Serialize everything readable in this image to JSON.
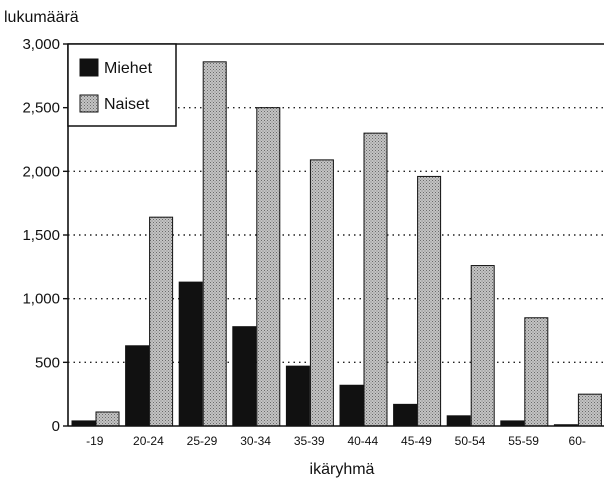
{
  "chart_data": {
    "type": "bar",
    "ylabel": "lukumäärä",
    "xlabel": "ikäryhmä",
    "categories": [
      "-19",
      "20-24",
      "25-29",
      "30-34",
      "35-39",
      "40-44",
      "45-49",
      "50-54",
      "55-59",
      "60-"
    ],
    "series": [
      {
        "name": "Miehet",
        "color": "#111111",
        "values": [
          40,
          630,
          1130,
          780,
          470,
          320,
          170,
          80,
          40,
          10
        ]
      },
      {
        "name": "Naiset",
        "color": "#a8a8a8",
        "values": [
          110,
          1640,
          2860,
          2500,
          2090,
          2300,
          1960,
          1260,
          850,
          250
        ]
      }
    ],
    "ylim": [
      0,
      3000
    ],
    "yticks": [
      0,
      500,
      1000,
      1500,
      2000,
      2500,
      3000
    ],
    "ytick_labels": [
      "0",
      "500",
      "1,000",
      "1,500",
      "2,000",
      "2,500",
      "3,000"
    ],
    "grid": "horizontal dotted",
    "legend_position": "top-left"
  }
}
